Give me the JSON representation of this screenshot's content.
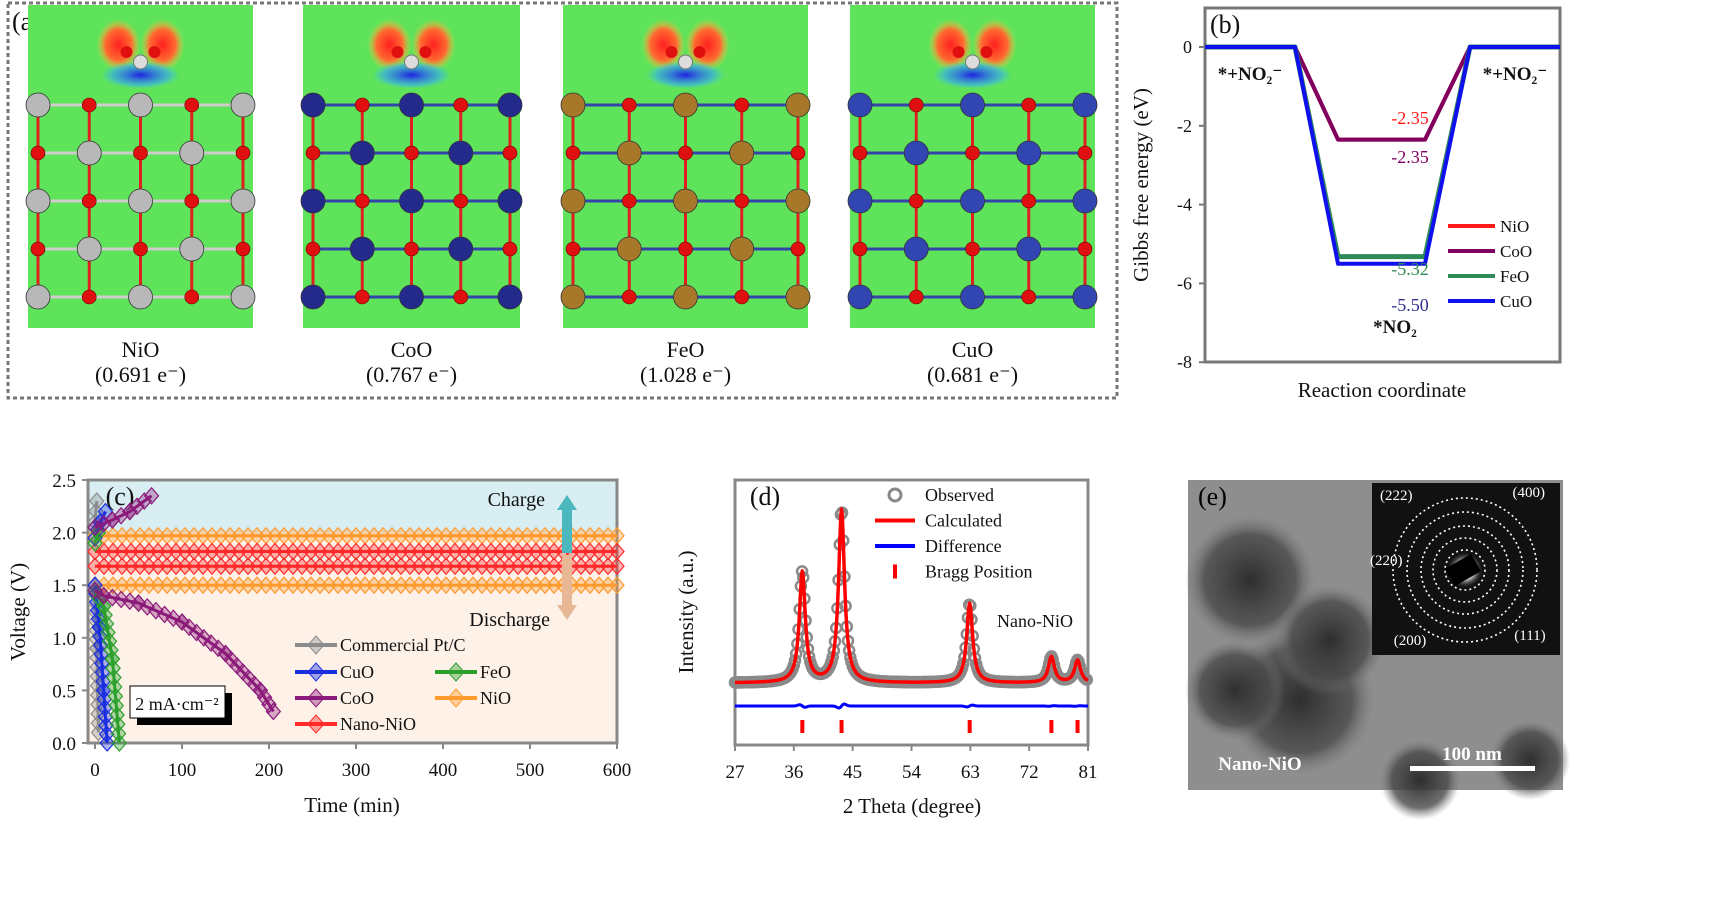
{
  "panel_a": {
    "label": "(a)",
    "structures": [
      {
        "name": "NiO",
        "charge": "(0.691 e⁻)",
        "metal_color": "#b8b8b8"
      },
      {
        "name": "CoO",
        "charge": "(0.767 e⁻)",
        "metal_color": "#232a8c"
      },
      {
        "name": "FeO",
        "charge": "(1.028 e⁻)",
        "metal_color": "#a8782a"
      },
      {
        "name": "CuO",
        "charge": "(0.681 e⁻)",
        "metal_color": "#3146b0"
      }
    ]
  },
  "chart_data": [
    {
      "type": "line",
      "panel_label": "(b)",
      "ylabel": "Gibbs free energy (eV)",
      "xlabel": "Reaction coordinate",
      "ylim": [
        -8,
        0.9
      ],
      "yticks": [
        "0",
        "-2",
        "-4",
        "-6",
        "-8"
      ],
      "yticks_values": [
        0,
        -2,
        -4,
        -6,
        -8
      ],
      "states": [
        "*+NO₂⁻",
        "*NO₂",
        "*+NO₂⁻"
      ],
      "series": [
        {
          "name": "NiO",
          "values": [
            0,
            -2.35,
            0
          ],
          "color": "#ff1a1a",
          "value_label": "-2.35"
        },
        {
          "name": "CoO",
          "values": [
            0,
            -2.35,
            0
          ],
          "color": "#800060",
          "value_label": "-2.35"
        },
        {
          "name": "FeO",
          "values": [
            0,
            -5.32,
            0
          ],
          "color": "#2e8b57",
          "value_label": "-5.32"
        },
        {
          "name": "CuO",
          "values": [
            0,
            -5.5,
            0
          ],
          "color": "#1010ee",
          "value_label": "-5.50"
        }
      ],
      "legend": "right"
    },
    {
      "type": "line",
      "panel_label": "(c)",
      "xlabel": "Time (min)",
      "ylabel": "Voltage (V)",
      "xlim": [
        -8,
        600
      ],
      "ylim": [
        0,
        2.5
      ],
      "xticks": [
        "0",
        "100",
        "200",
        "300",
        "400",
        "500",
        "600"
      ],
      "xticks_values": [
        0,
        100,
        200,
        300,
        400,
        500,
        600
      ],
      "yticks": [
        "0.0",
        "0.5",
        "1.0",
        "1.5",
        "2.0",
        "2.5"
      ],
      "yticks_values": [
        0,
        0.5,
        1.0,
        1.5,
        2.0,
        2.5
      ],
      "annotations": {
        "charge": "Charge",
        "discharge": "Discharge",
        "current": "2 mA·cm⁻²"
      },
      "series": [
        {
          "name": "Commercial Pt/C",
          "color": "#8c8c8c",
          "charge": [
            [
              0,
              2.1
            ],
            [
              2,
              2.3
            ]
          ],
          "discharge": [
            [
              0,
              1.5
            ],
            [
              2,
              0.9
            ],
            [
              4,
              0.1
            ]
          ]
        },
        {
          "name": "CuO",
          "color": "#1a2fe0",
          "charge": [
            [
              0,
              1.95
            ],
            [
              6,
              2.1
            ],
            [
              12,
              2.2
            ]
          ],
          "discharge": [
            [
              0,
              1.5
            ],
            [
              5,
              1.1
            ],
            [
              10,
              0.5
            ],
            [
              14,
              0.0
            ]
          ]
        },
        {
          "name": "FeO",
          "color": "#2ca02c",
          "charge": [
            [
              0,
              1.9
            ],
            [
              4,
              2.0
            ]
          ],
          "discharge": [
            [
              0,
              1.45
            ],
            [
              10,
              1.3
            ],
            [
              20,
              0.8
            ],
            [
              28,
              0.0
            ]
          ]
        },
        {
          "name": "CoO",
          "color": "#8b1a7a",
          "charge": [
            [
              0,
              2.05
            ],
            [
              20,
              2.12
            ],
            [
              40,
              2.2
            ],
            [
              65,
              2.35
            ]
          ],
          "discharge": [
            [
              0,
              1.45
            ],
            [
              10,
              1.4
            ],
            [
              50,
              1.33
            ],
            [
              100,
              1.15
            ],
            [
              150,
              0.85
            ],
            [
              190,
              0.5
            ],
            [
              205,
              0.3
            ]
          ]
        },
        {
          "name": "NiO",
          "color": "#ff9a2e",
          "charge": [
            [
              0,
              1.97
            ],
            [
              600,
              1.97
            ]
          ],
          "discharge": [
            [
              0,
              1.5
            ],
            [
              600,
              1.5
            ]
          ]
        },
        {
          "name": "Nano-NiO",
          "color": "#ff2a2a",
          "charge": [
            [
              0,
              1.82
            ],
            [
              600,
              1.82
            ]
          ],
          "discharge": [
            [
              0,
              1.68
            ],
            [
              600,
              1.68
            ]
          ]
        }
      ],
      "legend": "bottom-right"
    },
    {
      "type": "line",
      "panel_label": "(d)",
      "xlabel": "2 Theta (degree)",
      "ylabel": "Intensity (a.u.)",
      "xlim": [
        27,
        81
      ],
      "xticks": [
        "27",
        "36",
        "45",
        "54",
        "63",
        "72",
        "81"
      ],
      "xticks_values": [
        27,
        36,
        45,
        54,
        63,
        72,
        81
      ],
      "sample": "Nano-NiO",
      "peaks": [
        {
          "two_theta": 37.3,
          "relative_intensity": 0.64
        },
        {
          "two_theta": 43.3,
          "relative_intensity": 1.0
        },
        {
          "two_theta": 62.9,
          "relative_intensity": 0.46
        },
        {
          "two_theta": 75.4,
          "relative_intensity": 0.15
        },
        {
          "two_theta": 79.4,
          "relative_intensity": 0.13
        }
      ],
      "series": [
        {
          "name": "Observed",
          "color": "#808080"
        },
        {
          "name": "Calculated",
          "color": "#ff0000"
        },
        {
          "name": "Difference",
          "color": "#0000ff"
        },
        {
          "name": "Bragg Position",
          "color": "#ff0000"
        }
      ],
      "legend": "top-right"
    }
  ],
  "panel_e": {
    "label": "(e)",
    "sample": "Nano-NiO",
    "scale_bar": "100 nm",
    "rings": [
      "(222)",
      "(400)",
      "(220)",
      "(200)",
      "(111)"
    ]
  }
}
